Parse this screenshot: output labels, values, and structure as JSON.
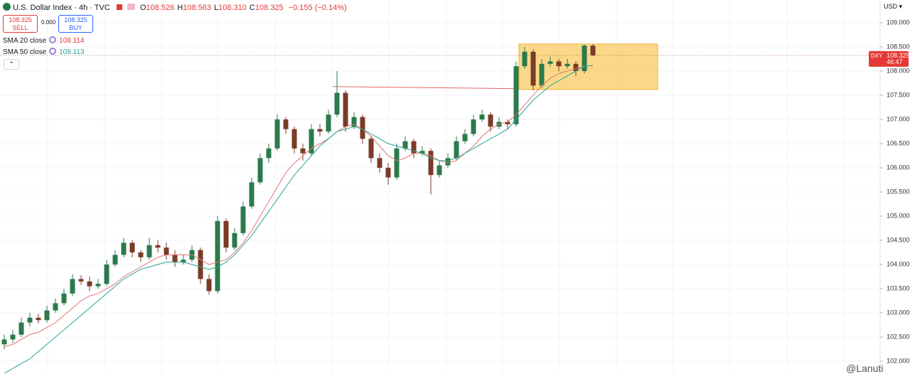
{
  "ui": {
    "symbol": "U.S. Dollar Index · 4h · TVC",
    "ohlc": [
      {
        "label": "O",
        "value": "108.526"
      },
      {
        "label": "H",
        "value": "108.563"
      },
      {
        "label": "L",
        "value": "108.310"
      },
      {
        "label": "C",
        "value": "108.325"
      }
    ],
    "change": "−0.155 (−0.14%)",
    "sell": {
      "price": "108.325",
      "label": "SELL"
    },
    "spread": "0.000",
    "buy": {
      "price": "108.325",
      "label": "BUY"
    },
    "currency": "USD",
    "price_tag": {
      "symbol": "DXY",
      "price": "108.325",
      "countdown": "46:47"
    },
    "watermark": "@Lanuti"
  },
  "chart_data": {
    "type": "candlestick",
    "up_color": "#2b7a4b",
    "down_color": "#7a3b28",
    "open": [
      102.35,
      102.45,
      102.55,
      102.8,
      102.9,
      102.85,
      103.05,
      103.2,
      103.4,
      103.7,
      103.65,
      103.55,
      103.6,
      104.0,
      104.2,
      104.45,
      104.25,
      104.15,
      104.4,
      104.35,
      104.2,
      104.05,
      104.1,
      104.3,
      103.7,
      103.45,
      104.9,
      104.35,
      104.65,
      105.2,
      105.7,
      106.2,
      106.4,
      107.0,
      106.8,
      106.4,
      106.3,
      106.8,
      106.75,
      107.1,
      107.55,
      106.85,
      107.05,
      106.6,
      106.2,
      106.0,
      105.8,
      106.4,
      106.55,
      106.3,
      106.35,
      105.85,
      106.05,
      106.2,
      106.55,
      106.7,
      107.0,
      107.1,
      106.85,
      106.95,
      106.9,
      108.1,
      108.4,
      107.7,
      108.15,
      108.2,
      108.1,
      108.15,
      108.0,
      108.526
    ],
    "high": [
      102.55,
      102.65,
      102.9,
      103.0,
      102.98,
      103.15,
      103.3,
      103.5,
      103.8,
      103.78,
      103.75,
      103.7,
      104.1,
      104.3,
      104.55,
      104.5,
      104.3,
      104.55,
      104.5,
      104.45,
      104.3,
      104.2,
      104.4,
      104.35,
      103.8,
      105.0,
      104.95,
      104.75,
      105.3,
      105.8,
      106.3,
      106.5,
      107.1,
      107.05,
      106.85,
      106.5,
      106.9,
      106.9,
      107.2,
      108.0,
      107.6,
      107.15,
      107.1,
      106.65,
      106.3,
      106.1,
      106.5,
      106.65,
      106.6,
      106.45,
      106.4,
      106.15,
      106.3,
      106.65,
      106.8,
      107.1,
      107.2,
      107.15,
      107.05,
      107.0,
      108.2,
      108.5,
      108.45,
      108.25,
      108.3,
      108.25,
      108.25,
      108.2,
      108.55,
      108.563
    ],
    "low": [
      102.25,
      102.38,
      102.5,
      102.72,
      102.78,
      102.8,
      103.0,
      103.15,
      103.35,
      103.58,
      103.45,
      103.5,
      103.55,
      103.95,
      104.15,
      104.15,
      104.05,
      104.1,
      104.25,
      104.1,
      103.95,
      104.0,
      104.05,
      103.6,
      103.38,
      103.4,
      104.25,
      104.3,
      104.6,
      105.15,
      105.65,
      106.1,
      106.35,
      106.7,
      106.3,
      106.15,
      106.25,
      106.65,
      106.7,
      107.05,
      106.75,
      106.8,
      106.5,
      106.1,
      105.9,
      105.65,
      105.75,
      106.35,
      106.2,
      106.25,
      105.45,
      105.8,
      106.0,
      106.15,
      106.5,
      106.65,
      106.95,
      106.75,
      106.8,
      106.8,
      106.85,
      108.05,
      107.6,
      107.65,
      108.1,
      108.0,
      108.05,
      107.9,
      107.95,
      108.31
    ],
    "close": [
      102.45,
      102.55,
      102.8,
      102.9,
      102.85,
      103.05,
      103.2,
      103.4,
      103.7,
      103.65,
      103.55,
      103.6,
      104.0,
      104.2,
      104.45,
      104.25,
      104.15,
      104.4,
      104.35,
      104.2,
      104.05,
      104.1,
      104.3,
      103.7,
      103.45,
      104.9,
      104.35,
      104.65,
      105.2,
      105.7,
      106.2,
      106.4,
      107.0,
      106.8,
      106.4,
      106.3,
      106.8,
      106.75,
      107.1,
      107.55,
      106.85,
      107.05,
      106.6,
      106.2,
      106.0,
      105.8,
      106.4,
      106.55,
      106.3,
      106.35,
      105.85,
      106.05,
      106.2,
      106.55,
      106.7,
      107.0,
      107.1,
      106.85,
      106.95,
      106.9,
      108.1,
      108.4,
      107.7,
      108.15,
      108.2,
      108.1,
      108.15,
      108.0,
      108.526,
      108.325
    ],
    "series": [
      {
        "name": "SMA 20 close",
        "color": "#e57373",
        "last": 108.114,
        "values": [
          102.3,
          102.35,
          102.45,
          102.55,
          102.6,
          102.7,
          102.8,
          102.95,
          103.1,
          103.25,
          103.35,
          103.4,
          103.5,
          103.6,
          103.75,
          103.85,
          103.95,
          104.05,
          104.15,
          104.2,
          104.2,
          104.2,
          104.2,
          104.1,
          104.0,
          104.05,
          104.1,
          104.25,
          104.45,
          104.7,
          105.0,
          105.3,
          105.6,
          105.9,
          106.1,
          106.25,
          106.4,
          106.5,
          106.6,
          106.75,
          106.85,
          106.9,
          106.8,
          106.65,
          106.45,
          106.25,
          106.15,
          106.2,
          106.3,
          106.3,
          106.25,
          106.15,
          106.1,
          106.15,
          106.3,
          106.45,
          106.65,
          106.8,
          106.9,
          106.95,
          107.1,
          107.3,
          107.5,
          107.7,
          107.85,
          107.95,
          108.0,
          108.05,
          108.1,
          108.114
        ]
      },
      {
        "name": "SMA 50 close",
        "color": "#26a69a",
        "last": 108.113,
        "values": [
          101.75,
          101.85,
          101.95,
          102.05,
          102.2,
          102.35,
          102.5,
          102.65,
          102.8,
          102.95,
          103.1,
          103.25,
          103.4,
          103.55,
          103.7,
          103.8,
          103.9,
          103.95,
          104.0,
          104.05,
          104.05,
          104.05,
          104.0,
          103.95,
          103.9,
          103.95,
          104.05,
          104.2,
          104.4,
          104.6,
          104.85,
          105.1,
          105.35,
          105.6,
          105.85,
          106.05,
          106.25,
          106.45,
          106.6,
          106.75,
          106.8,
          106.85,
          106.8,
          106.7,
          106.6,
          106.5,
          106.45,
          106.4,
          106.35,
          106.3,
          106.2,
          106.15,
          106.15,
          106.2,
          106.3,
          106.4,
          106.5,
          106.6,
          106.7,
          106.8,
          107.0,
          107.2,
          107.4,
          107.55,
          107.7,
          107.8,
          107.9,
          108.0,
          108.1,
          108.113
        ]
      }
    ],
    "level_line": {
      "value": 107.68,
      "color": "#e06666"
    },
    "zone": {
      "top": 108.56,
      "bottom": 107.62,
      "color": "#f9c349"
    },
    "ylim": [
      101.78,
      109.47
    ],
    "yticks": [
      {
        "value": 102,
        "label": "102.000"
      },
      {
        "value": 102.5,
        "label": "102.500"
      },
      {
        "value": 103,
        "label": "103.000"
      },
      {
        "value": 103.5,
        "label": "103.500"
      },
      {
        "value": 104,
        "label": "104.000"
      },
      {
        "value": 104.5,
        "label": "104.500"
      },
      {
        "value": 105,
        "label": "105.000"
      },
      {
        "value": 105.5,
        "label": "105.500"
      },
      {
        "value": 106,
        "label": "106.000"
      },
      {
        "value": 106.5,
        "label": "106.500"
      },
      {
        "value": 107,
        "label": "107.000"
      },
      {
        "value": 107.5,
        "label": "107.500"
      },
      {
        "value": 108,
        "label": "108.000"
      },
      {
        "value": 108.5,
        "label": "108.500"
      },
      {
        "value": 109,
        "label": "109.000"
      }
    ],
    "grid": true
  }
}
